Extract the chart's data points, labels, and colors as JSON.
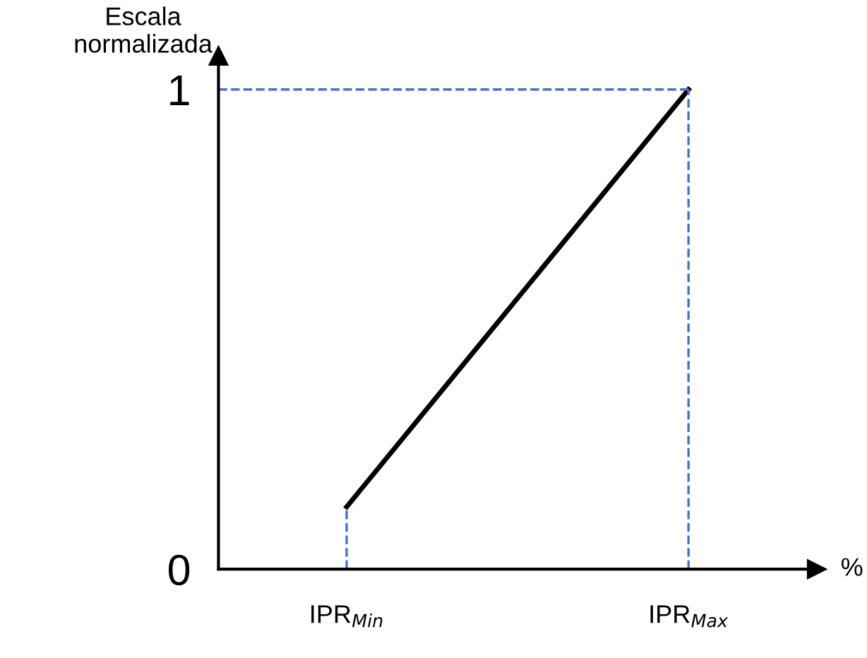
{
  "chart_data": {
    "type": "line",
    "xlabel": "%",
    "ylabel": "Escala\nnormalizada",
    "categories": [
      null,
      "IPR$_{Min}$",
      null,
      null,
      null,
      "IPR$_{Max}$",
      null
    ],
    "ylim": [
      0,
      1.07
    ],
    "yticks": [
      0,
      1
    ],
    "grid": false,
    "legend": false,
    "marker": "none",
    "series": [
      {
        "values": [
          null,
          0.13,
          null,
          null,
          null,
          1,
          null
        ],
        "color": "#000000",
        "line_style": "solid"
      }
    ],
    "ref_lines": [
      {
        "axis": "x",
        "value": "IPR$_{Min}$",
        "color": "#4472c4",
        "line_style": "dashed"
      },
      {
        "axis": "x",
        "value": "IPR$_{Max}$",
        "color": "#4472c4",
        "line_style": "dashed"
      },
      {
        "axis": "y",
        "value": 1,
        "color": "#4472c4",
        "line_style": "dashed"
      }
    ]
  }
}
